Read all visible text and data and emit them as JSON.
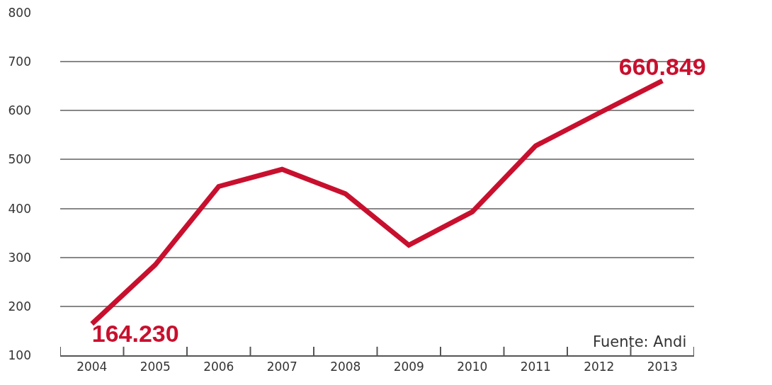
{
  "chart_data": {
    "type": "line",
    "categories": [
      "2004",
      "2005",
      "2006",
      "2007",
      "2008",
      "2009",
      "2010",
      "2011",
      "2012",
      "2013"
    ],
    "series": [
      {
        "color": "#c8102e",
        "values": [
          164.23,
          285,
          445,
          480,
          430,
          325,
          393,
          528,
          595,
          660.849
        ],
        "value_labels": [
          "164.230",
          null,
          null,
          null,
          null,
          null,
          null,
          null,
          null,
          "660.849"
        ]
      }
    ],
    "ylim": [
      100,
      800
    ],
    "yticks": [
      100,
      200,
      300,
      400,
      500,
      600,
      700,
      800
    ],
    "grid": "y",
    "legend": false,
    "marker": "none",
    "line_style": "solid",
    "annotations": [
      "Fuente: Andi"
    ]
  }
}
